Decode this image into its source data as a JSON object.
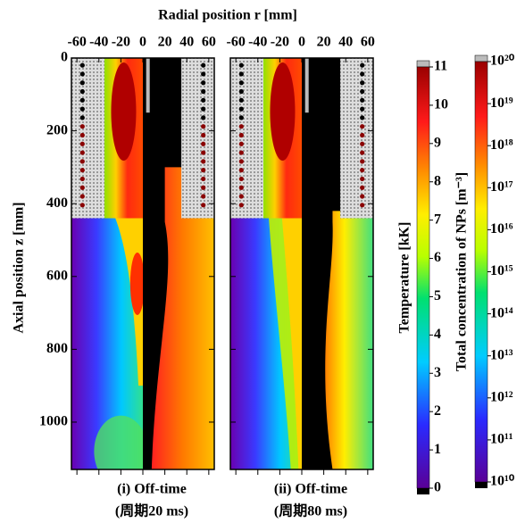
{
  "chart_data": {
    "type": "contour",
    "title": "Radial position r [mm]",
    "y_label": "Axial position z [mm]",
    "xlim": [
      -65,
      65
    ],
    "xticks": [
      -60,
      -40,
      -20,
      0,
      20,
      40,
      60
    ],
    "ylim": [
      0,
      1130
    ],
    "yticks": [
      0,
      200,
      400,
      600,
      800,
      1000
    ],
    "panels": [
      {
        "caption": "(i) Off-time",
        "subcaption": "(周期20 ms)"
      },
      {
        "caption": "(ii) Off-time",
        "subcaption": "(周期80 ms)"
      }
    ],
    "colorbars": [
      {
        "label": "Temperature [kK]",
        "lim": [
          0,
          11
        ],
        "ticks": [
          0,
          1,
          2,
          3,
          4,
          5,
          6,
          7,
          8,
          9,
          10,
          11
        ]
      },
      {
        "label": "Total concentration of NPs [m⁻³]",
        "lim": [
          10000000000,
          100000000000000000000
        ],
        "log": true,
        "ticks": [
          {
            "value": 10000000000,
            "label": "10¹⁰"
          },
          {
            "value": 100000000000,
            "label": "10¹¹"
          },
          {
            "value": 1000000000000,
            "label": "10¹²"
          },
          {
            "value": 10000000000000,
            "label": "10¹³"
          },
          {
            "value": 100000000000000,
            "label": "10¹⁴"
          },
          {
            "value": 1000000000000000,
            "label": "10¹⁵"
          },
          {
            "value": 10000000000000000,
            "label": "10¹⁶"
          },
          {
            "value": 100000000000000000,
            "label": "10¹⁷"
          },
          {
            "value": 1000000000000000000,
            "label": "10¹⁸"
          },
          {
            "value": 10000000000000000000,
            "label": "10¹⁹"
          },
          {
            "value": 100000000000000000000,
            "label": "10²⁰"
          }
        ]
      }
    ]
  }
}
